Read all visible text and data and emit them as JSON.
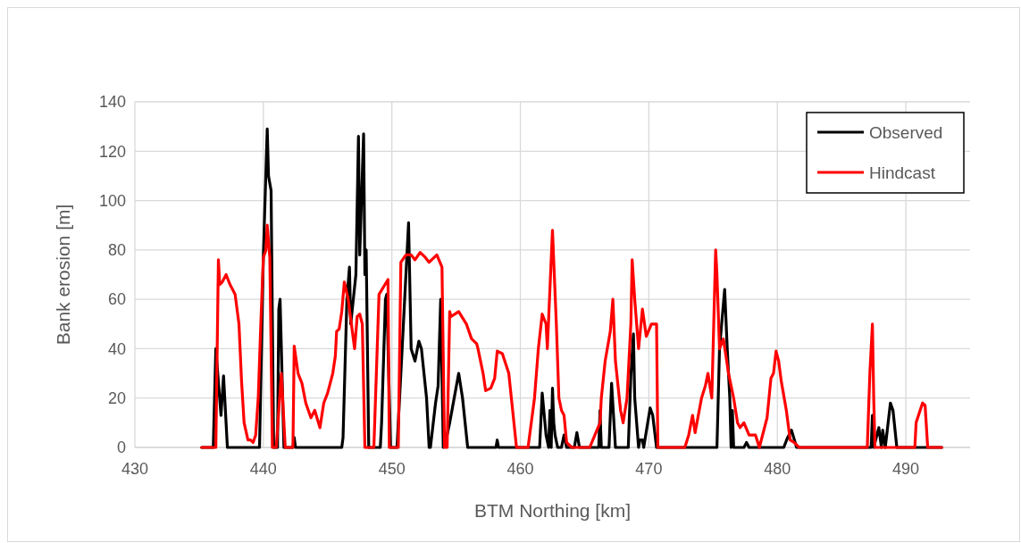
{
  "chart_data": {
    "type": "line",
    "xlabel": "BTM Northing [km]",
    "ylabel": "Bank erosion [m]",
    "xlim": [
      430,
      495
    ],
    "xticks": [
      430,
      440,
      450,
      460,
      470,
      480,
      490
    ],
    "ylim": [
      0,
      140
    ],
    "yticks": [
      0,
      20,
      40,
      60,
      80,
      100,
      120,
      140
    ],
    "grid": true,
    "legend": "top right",
    "marker": "none",
    "line_style": "solid",
    "series": [
      {
        "name": "Observed",
        "color": "#000000",
        "x": [
          435.2,
          436.1,
          436.3,
          436.7,
          436.9,
          437.2,
          439.7,
          440.0,
          440.3,
          440.4,
          440.6,
          440.8,
          441.1,
          441.2,
          441.3,
          441.6,
          442.3,
          442.4,
          442.5,
          446.1,
          446.2,
          446.5,
          446.7,
          446.8,
          447.2,
          447.4,
          447.5,
          447.8,
          447.9,
          448.0,
          448.2,
          449.1,
          449.2,
          449.5,
          449.6,
          449.9,
          450.4,
          450.8,
          451.3,
          451.5,
          451.8,
          452.1,
          452.3,
          452.7,
          452.9,
          453.0,
          453.4,
          453.6,
          453.8,
          454.0,
          454.3,
          454.5,
          455.2,
          455.5,
          455.9,
          458.1,
          458.2,
          458.3,
          461.5,
          461.7,
          462.0,
          462.2,
          462.3,
          462.4,
          462.5,
          462.6,
          462.7,
          462.9,
          463.2,
          463.4,
          463.6,
          464.2,
          464.4,
          464.6,
          466.1,
          466.2,
          466.3,
          466.9,
          467.1,
          467.4,
          468.4,
          468.5,
          468.6,
          468.8,
          468.9,
          469.2,
          469.3,
          469.5,
          469.6,
          470.1,
          470.3,
          470.6,
          475.3,
          475.5,
          475.9,
          476.1,
          476.3,
          476.4,
          476.5,
          476.6,
          477.4,
          477.6,
          477.8,
          480.5,
          480.8,
          481.1,
          481.5,
          487.3,
          487.4,
          487.5,
          487.9,
          488.1,
          488.2,
          488.4,
          488.8,
          489.0,
          489.3,
          492.8
        ],
        "values": [
          0,
          0,
          40,
          13,
          29,
          0,
          0,
          78,
          129,
          110,
          104,
          0,
          0,
          56,
          60,
          0,
          0,
          4,
          0,
          0,
          4,
          60,
          73,
          50,
          70,
          126,
          78,
          127,
          70,
          80,
          0,
          0,
          10,
          60,
          62,
          0,
          0,
          40,
          91,
          40,
          35,
          43,
          40,
          20,
          0,
          0,
          18,
          25,
          60,
          0,
          5,
          10,
          30,
          20,
          0,
          0,
          3,
          0,
          0,
          22,
          5,
          0,
          15,
          0,
          24,
          10,
          5,
          0,
          0,
          5,
          0,
          0,
          6,
          0,
          0,
          15,
          0,
          0,
          26,
          0,
          0,
          15,
          29,
          46,
          20,
          0,
          3,
          3,
          0,
          16,
          13,
          0,
          0,
          40,
          64,
          40,
          20,
          0,
          15,
          0,
          0,
          2,
          0,
          0,
          4,
          7,
          0,
          0,
          13,
          0,
          8,
          0,
          7,
          0,
          18,
          15,
          0,
          0
        ]
      },
      {
        "name": "Hindcast",
        "color": "#ff0000",
        "x": [
          435.2,
          436.3,
          436.5,
          436.6,
          436.8,
          437.1,
          437.4,
          437.8,
          438.1,
          438.3,
          438.5,
          438.8,
          439.0,
          439.2,
          439.4,
          439.6,
          439.8,
          440.0,
          440.2,
          440.3,
          440.5,
          440.6,
          440.7,
          441.0,
          441.4,
          441.7,
          442.3,
          442.4,
          442.7,
          443.0,
          443.3,
          443.7,
          444.0,
          444.4,
          444.7,
          445.0,
          445.4,
          445.6,
          445.7,
          445.9,
          446.1,
          446.3,
          446.6,
          447.1,
          447.3,
          447.5,
          447.7,
          447.9,
          448.6,
          449.0,
          449.7,
          449.8,
          450.5,
          450.7,
          451.1,
          451.5,
          451.8,
          452.2,
          452.6,
          452.9,
          453.5,
          453.9,
          454.1,
          454.3,
          454.5,
          454.6,
          455.2,
          455.8,
          456.2,
          456.6,
          456.7,
          457.1,
          457.3,
          457.7,
          458.0,
          458.2,
          458.6,
          459.1,
          459.4,
          459.7,
          460.6,
          461.1,
          461.4,
          461.7,
          462.0,
          462.1,
          462.5,
          462.8,
          463.0,
          463.2,
          463.4,
          463.6,
          464.0,
          465.4,
          465.8,
          466.2,
          466.3,
          466.6,
          467.0,
          467.2,
          467.4,
          467.8,
          468.0,
          468.3,
          468.6,
          468.7,
          468.9,
          469.2,
          469.5,
          469.8,
          470.2,
          470.6,
          470.7,
          472.8,
          473.1,
          473.4,
          473.6,
          474.1,
          474.4,
          474.6,
          474.9,
          475.2,
          475.3,
          475.5,
          475.8,
          476.2,
          476.6,
          476.9,
          477.1,
          477.4,
          477.8,
          478.3,
          478.6,
          479.2,
          479.5,
          479.7,
          479.9,
          480.1,
          480.3,
          480.7,
          481.0,
          481.3,
          481.7,
          487.0,
          487.2,
          487.4,
          487.5,
          487.6,
          490.7,
          490.8,
          491.3,
          491.5,
          491.7,
          492.8
        ],
        "values": [
          0,
          0,
          76,
          66,
          67,
          70,
          66,
          62,
          50,
          27,
          10,
          3,
          3,
          2,
          5,
          20,
          50,
          77,
          80,
          90,
          77,
          40,
          0,
          0,
          30,
          0,
          0,
          41,
          30,
          26,
          18,
          12,
          15,
          8,
          18,
          22,
          30,
          37,
          47,
          48,
          55,
          67,
          60,
          40,
          53,
          54,
          50,
          0,
          0,
          62,
          68,
          0,
          0,
          75,
          78,
          78,
          76,
          79,
          77,
          75,
          78,
          73,
          0,
          0,
          55,
          53,
          55,
          50,
          44,
          42,
          40,
          30,
          23,
          24,
          28,
          39,
          38,
          30,
          15,
          0,
          0,
          20,
          40,
          54,
          50,
          40,
          88,
          50,
          20,
          15,
          13,
          2,
          0,
          0,
          5,
          10,
          20,
          35,
          47,
          60,
          35,
          15,
          10,
          20,
          50,
          76,
          60,
          40,
          56,
          45,
          50,
          50,
          0,
          0,
          5,
          13,
          6,
          20,
          25,
          30,
          20,
          80,
          70,
          40,
          44,
          30,
          20,
          10,
          8,
          10,
          5,
          5,
          0,
          12,
          28,
          30,
          39,
          35,
          27,
          15,
          3,
          2,
          0,
          0,
          30,
          50,
          20,
          0,
          0,
          10,
          18,
          17,
          0,
          0
        ]
      }
    ]
  }
}
